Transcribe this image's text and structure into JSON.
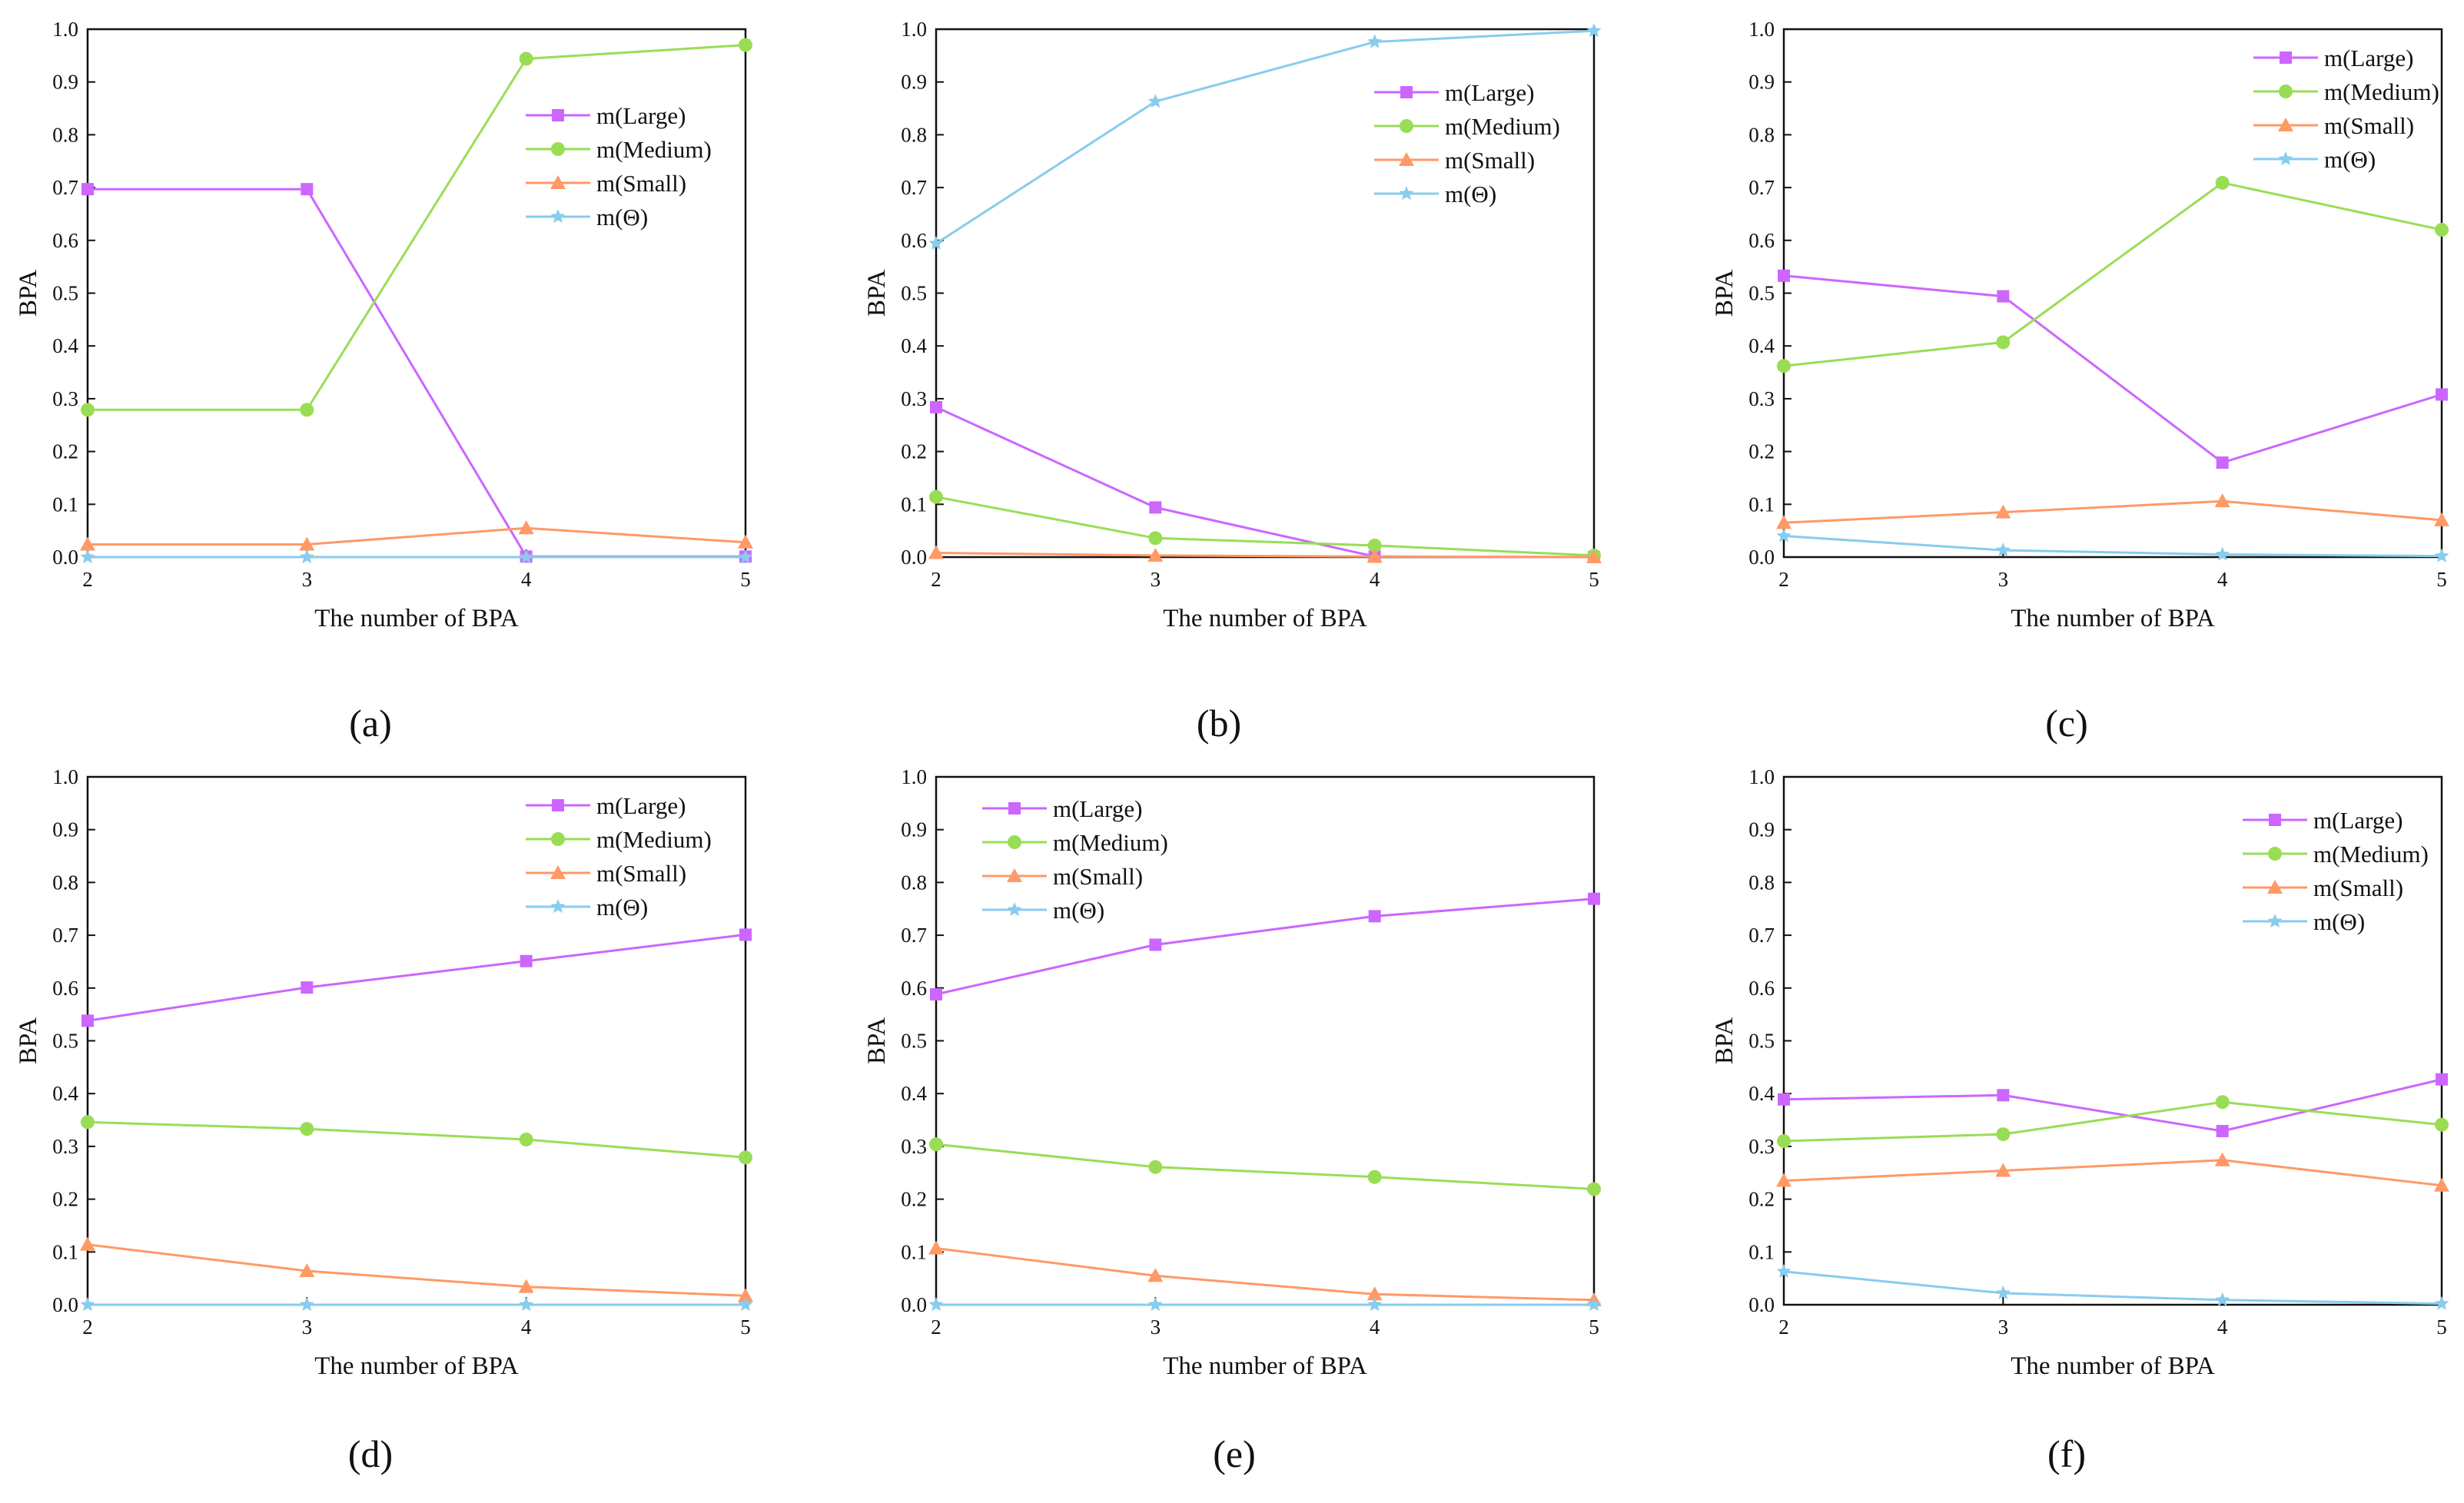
{
  "figure": {
    "panels": [
      {
        "caption": "(a)"
      },
      {
        "caption": "(b)"
      },
      {
        "caption": "(c)"
      },
      {
        "caption": "(d)"
      },
      {
        "caption": "(e)"
      },
      {
        "caption": "(f)"
      }
    ]
  },
  "series_style": [
    {
      "name": "m(Large)",
      "color": "#cc66ff",
      "marker": "square"
    },
    {
      "name": "m(Medium)",
      "color": "#99dd55",
      "marker": "circle"
    },
    {
      "name": "m(Small)",
      "color": "#ff9966",
      "marker": "triangle"
    },
    {
      "name": "m(Θ)",
      "color": "#88ccee",
      "marker": "star"
    }
  ],
  "chart_data": [
    {
      "type": "line",
      "title": "(a)",
      "xlabel": "The number of BPA",
      "ylabel": "BPA",
      "x": [
        2,
        3,
        4,
        5
      ],
      "ylim": [
        0,
        1.0
      ],
      "yticks": [
        "0.0",
        "0.1",
        "0.2",
        "0.3",
        "0.4",
        "0.5",
        "0.6",
        "0.7",
        "0.8",
        "0.9",
        "1.0"
      ],
      "legend_position": "top-right",
      "series": [
        {
          "name": "m(Large)",
          "values": [
            0.697,
            0.697,
            0.001,
            0.001
          ]
        },
        {
          "name": "m(Medium)",
          "values": [
            0.279,
            0.279,
            0.944,
            0.97
          ]
        },
        {
          "name": "m(Small)",
          "values": [
            0.024,
            0.024,
            0.055,
            0.028
          ]
        },
        {
          "name": "m(Θ)",
          "values": [
            0.0,
            0.0,
            0.0,
            0.0
          ]
        }
      ]
    },
    {
      "type": "line",
      "title": "(b)",
      "xlabel": "The number of BPA",
      "ylabel": "BPA",
      "x": [
        2,
        3,
        4,
        5
      ],
      "ylim": [
        0,
        1.0
      ],
      "yticks": [
        "0.0",
        "0.1",
        "0.2",
        "0.3",
        "0.4",
        "0.5",
        "0.6",
        "0.7",
        "0.8",
        "0.9",
        "1.0"
      ],
      "legend_position": "top-right",
      "series": [
        {
          "name": "m(Large)",
          "values": [
            0.284,
            0.094,
            0.001,
            0.0
          ]
        },
        {
          "name": "m(Medium)",
          "values": [
            0.114,
            0.036,
            0.022,
            0.003
          ]
        },
        {
          "name": "m(Small)",
          "values": [
            0.008,
            0.003,
            0.001,
            0.0
          ]
        },
        {
          "name": "m(Θ)",
          "values": [
            0.594,
            0.863,
            0.976,
            0.997
          ]
        }
      ]
    },
    {
      "type": "line",
      "title": "(c)",
      "xlabel": "The number of BPA",
      "ylabel": "BPA",
      "x": [
        2,
        3,
        4,
        5
      ],
      "ylim": [
        0,
        1.0
      ],
      "yticks": [
        "0.0",
        "0.1",
        "0.2",
        "0.3",
        "0.4",
        "0.5",
        "0.6",
        "0.7",
        "0.8",
        "0.9",
        "1.0"
      ],
      "legend_position": "top-right",
      "series": [
        {
          "name": "m(Large)",
          "values": [
            0.533,
            0.494,
            0.179,
            0.308
          ]
        },
        {
          "name": "m(Medium)",
          "values": [
            0.362,
            0.407,
            0.709,
            0.62
          ]
        },
        {
          "name": "m(Small)",
          "values": [
            0.065,
            0.085,
            0.106,
            0.07
          ]
        },
        {
          "name": "m(Θ)",
          "values": [
            0.04,
            0.013,
            0.005,
            0.002
          ]
        }
      ]
    },
    {
      "type": "line",
      "title": "(d)",
      "xlabel": "The number of BPA",
      "ylabel": "BPA",
      "x": [
        2,
        3,
        4,
        5
      ],
      "ylim": [
        0,
        1.0
      ],
      "yticks": [
        "0.0",
        "0.1",
        "0.2",
        "0.3",
        "0.4",
        "0.5",
        "0.6",
        "0.7",
        "0.8",
        "0.9",
        "1.0"
      ],
      "legend_position": "top-right",
      "series": [
        {
          "name": "m(Large)",
          "values": [
            0.538,
            0.601,
            0.651,
            0.701
          ]
        },
        {
          "name": "m(Medium)",
          "values": [
            0.346,
            0.333,
            0.313,
            0.279
          ]
        },
        {
          "name": "m(Small)",
          "values": [
            0.114,
            0.064,
            0.034,
            0.017
          ]
        },
        {
          "name": "m(Θ)",
          "values": [
            0.0,
            0.0,
            0.0,
            0.0
          ]
        }
      ]
    },
    {
      "type": "line",
      "title": "(e)",
      "xlabel": "The number of BPA",
      "ylabel": "BPA",
      "x": [
        2,
        3,
        4,
        5
      ],
      "ylim": [
        0,
        1.0
      ],
      "yticks": [
        "0.0",
        "0.1",
        "0.2",
        "0.3",
        "0.4",
        "0.5",
        "0.6",
        "0.7",
        "0.8",
        "0.9",
        "1.0"
      ],
      "legend_position": "top-left",
      "series": [
        {
          "name": "m(Large)",
          "values": [
            0.588,
            0.682,
            0.736,
            0.769
          ]
        },
        {
          "name": "m(Medium)",
          "values": [
            0.304,
            0.261,
            0.242,
            0.219
          ]
        },
        {
          "name": "m(Small)",
          "values": [
            0.107,
            0.055,
            0.02,
            0.009
          ]
        },
        {
          "name": "m(Θ)",
          "values": [
            0.0,
            0.0,
            0.0,
            0.0
          ]
        }
      ]
    },
    {
      "type": "line",
      "title": "(f)",
      "xlabel": "The number of BPA",
      "ylabel": "BPA",
      "x": [
        2,
        3,
        4,
        5
      ],
      "ylim": [
        0,
        1.0
      ],
      "yticks": [
        "0.0",
        "0.1",
        "0.2",
        "0.3",
        "0.4",
        "0.5",
        "0.6",
        "0.7",
        "0.8",
        "0.9",
        "1.0"
      ],
      "legend_position": "top-right",
      "series": [
        {
          "name": "m(Large)",
          "values": [
            0.389,
            0.397,
            0.329,
            0.427
          ]
        },
        {
          "name": "m(Medium)",
          "values": [
            0.31,
            0.323,
            0.384,
            0.341
          ]
        },
        {
          "name": "m(Small)",
          "values": [
            0.235,
            0.254,
            0.274,
            0.226
          ]
        },
        {
          "name": "m(Θ)",
          "values": [
            0.063,
            0.022,
            0.009,
            0.002
          ]
        }
      ]
    }
  ]
}
